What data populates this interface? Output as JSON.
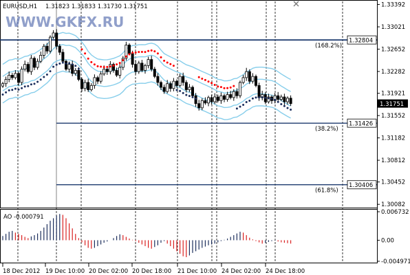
{
  "header": {
    "symbol": "EURUSD,H1",
    "ohlc": "1.31823 1.31833 1.31730 1.31751"
  },
  "watermark": "WWW.GKFX.RU",
  "window": {
    "close_icon": "close-icon"
  },
  "colors": {
    "candle": "#000000",
    "band": "#87ceeb",
    "sar_bull": "#1c2e5c",
    "sar_bear": "#ff0000",
    "fib": "#1c3a6e",
    "ao_up": "#1c2e5c",
    "ao_down": "#d92020",
    "grid": "#000000"
  },
  "chart_data": [
    {
      "type": "candlestick",
      "title": "",
      "y_ticks": [
        "1.33392",
        "1.33021",
        "1.32652",
        "1.32282",
        "1.31921",
        "1.31552",
        "1.31182",
        "1.30812",
        "1.30452",
        "1.30082"
      ],
      "ylim": [
        1.3005,
        1.3342
      ],
      "x_ticks": [
        "18 Dec 2012",
        "19 Dec 10:00",
        "20 Dec 02:00",
        "20 Dec 18:00",
        "21 Dec 10:00",
        "24 Dec 02:00",
        "24 Dec 18:00"
      ],
      "current_price": "1.31751",
      "fib_levels": [
        {
          "price": 1.32804,
          "label": "1.32804",
          "percent": "(168.2%)"
        },
        {
          "price": 1.31426,
          "label": "1.31426",
          "percent": "(38.2%)"
        },
        {
          "price": 1.30406,
          "label": "1.30406",
          "percent": "(61.8%)"
        }
      ],
      "close_prices": [
        1.3208,
        1.3215,
        1.3222,
        1.3218,
        1.3225,
        1.321,
        1.3232,
        1.324,
        1.3228,
        1.325,
        1.3235,
        1.3245,
        1.3255,
        1.327,
        1.3262,
        1.3285,
        1.3292,
        1.327,
        1.326,
        1.3245,
        1.3232,
        1.324,
        1.3225,
        1.323,
        1.3215,
        1.32,
        1.321,
        1.3198,
        1.3205,
        1.3218,
        1.3212,
        1.3224,
        1.3232,
        1.3228,
        1.324,
        1.323,
        1.3222,
        1.3235,
        1.325,
        1.3272,
        1.3258,
        1.324,
        1.3228,
        1.3242,
        1.323,
        1.3238,
        1.3248,
        1.3232,
        1.322,
        1.321,
        1.3202,
        1.3195,
        1.3208,
        1.32,
        1.3212,
        1.3205,
        1.322,
        1.321,
        1.3198,
        1.3202,
        1.3188,
        1.3175,
        1.3168,
        1.318,
        1.3176,
        1.3185,
        1.3178,
        1.3186,
        1.318,
        1.3188,
        1.3182,
        1.319,
        1.3185,
        1.3195,
        1.3188,
        1.321,
        1.3218,
        1.3228,
        1.3212,
        1.322,
        1.3205,
        1.3185,
        1.319,
        1.3178,
        1.3186,
        1.318,
        1.3188,
        1.3182,
        1.3186,
        1.3178,
        1.3184,
        1.3175
      ]
    },
    {
      "type": "bar",
      "title": "",
      "label": "AO -0.000791",
      "y_ticks": [
        "0.006732",
        "0.00",
        "-0.004971"
      ],
      "ylim": [
        -0.004971,
        0.006732
      ],
      "values": [
        0.001,
        0.0015,
        0.002,
        0.0022,
        0.0018,
        0.0015,
        0.0012,
        0.0008,
        0.0005,
        0.0009,
        0.0012,
        0.0016,
        0.0022,
        0.003,
        0.0038,
        0.0046,
        0.0052,
        0.0058,
        0.0062,
        0.006,
        0.0052,
        0.004,
        0.0028,
        0.0015,
        0.0005,
        -0.0005,
        -0.0012,
        -0.0018,
        -0.002,
        -0.0018,
        -0.0014,
        -0.001,
        -0.0006,
        -0.0003,
        0.0,
        0.0005,
        0.001,
        0.0014,
        0.0012,
        0.0008,
        0.0004,
        0.0001,
        -0.0002,
        -0.0006,
        -0.001,
        -0.0014,
        -0.0018,
        -0.002,
        -0.0016,
        -0.0012,
        -0.0006,
        -0.0002,
        -0.0008,
        -0.0014,
        -0.002,
        -0.0026,
        -0.0032,
        -0.0038,
        -0.004,
        -0.0036,
        -0.003,
        -0.0026,
        -0.0022,
        -0.0018,
        -0.0015,
        -0.0012,
        -0.001,
        -0.0008,
        -0.0005,
        -0.0002,
        0.0001,
        0.0004,
        0.0008,
        0.0012,
        0.0016,
        0.002,
        0.0018,
        0.0012,
        0.0006,
        0.0002,
        -0.0002,
        -0.0005,
        -0.0008,
        -0.0006,
        -0.0004,
        -0.0002,
        -0.0001,
        -0.0003,
        -0.0005,
        -0.0006,
        -0.0007,
        -0.0008
      ]
    }
  ]
}
